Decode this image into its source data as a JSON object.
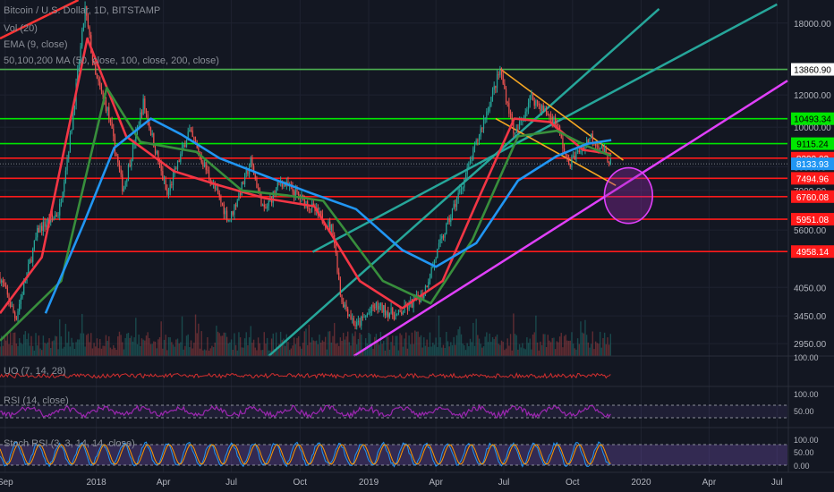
{
  "header": {
    "title": "Bitcoin / U.S. Dollar, 1D, BITSTAMP",
    "vol": "Vol (20)",
    "ema": "EMA (9, close)",
    "ma": "50,100,200 MA (50, close, 100, close, 200, close)"
  },
  "panels": {
    "uo": "UO (7, 14, 28)",
    "rsi": "RSI (14, close)",
    "stoch": "Stoch RSI (3, 3, 14, 14, close)"
  },
  "chart_data": {
    "type": "line",
    "title": "Bitcoin / U.S. Dollar, 1D, BITSTAMP",
    "xlabel": "",
    "ylabel": "",
    "x_ticks": [
      "Sep",
      "2018",
      "Apr",
      "Jul",
      "Oct",
      "2019",
      "Apr",
      "Jul",
      "Oct",
      "2020",
      "Apr",
      "Jul"
    ],
    "x_tick_dates": [
      "2017-09-01",
      "2018-01-01",
      "2018-04-01",
      "2018-07-01",
      "2018-10-01",
      "2019-01-01",
      "2019-04-01",
      "2019-07-01",
      "2019-10-01",
      "2020-01-01",
      "2020-04-01",
      "2020-07-01"
    ],
    "xlim": [
      "2017-08-25",
      "2020-07-15"
    ],
    "y_scale": "log",
    "ylim": [
      2750,
      20500
    ],
    "y_ticks": [
      18000,
      12000,
      10000,
      8000,
      7000,
      5600,
      4050,
      3450,
      2950
    ],
    "price_labels": [
      {
        "value": "13860.90",
        "color": "#ffffff",
        "text_color": "#000000"
      },
      {
        "value": "10493.34",
        "color": "#00e600",
        "text_color": "#000000"
      },
      {
        "value": "9115.24",
        "color": "#00e600",
        "text_color": "#000000"
      },
      {
        "value": "8399.02",
        "color": "#ff1a1a",
        "text_color": "#ffffff"
      },
      {
        "value": "8133.93",
        "color": "#2196f3",
        "text_color": "#ffffff"
      },
      {
        "value": "7494.96",
        "color": "#ff1a1a",
        "text_color": "#ffffff"
      },
      {
        "value": "6760.08",
        "color": "#ff1a1a",
        "text_color": "#ffffff"
      },
      {
        "value": "5951.08",
        "color": "#ff1a1a",
        "text_color": "#ffffff"
      },
      {
        "value": "4958.14",
        "color": "#ff1a1a",
        "text_color": "#ffffff"
      }
    ],
    "horizontal_levels": [
      {
        "value": 13860.9,
        "color": "#4caf50"
      },
      {
        "value": 10493.34,
        "color": "#00e600"
      },
      {
        "value": 9115.24,
        "color": "#00e600"
      },
      {
        "value": 8399.02,
        "color": "#ff1a1a"
      },
      {
        "value": 7494.96,
        "color": "#ff1a1a"
      },
      {
        "value": 6760.08,
        "color": "#ff1a1a"
      },
      {
        "value": 5951.08,
        "color": "#ff1a1a"
      },
      {
        "value": 4958.14,
        "color": "#ff1a1a"
      }
    ],
    "series": [
      {
        "type": "price",
        "x": [
          "2017-08-25",
          "2017-09-15",
          "2017-10-15",
          "2017-11-12",
          "2017-11-28",
          "2017-12-17",
          "2017-12-30",
          "2018-01-16",
          "2018-02-06",
          "2018-03-05",
          "2018-04-06",
          "2018-05-05",
          "2018-06-28",
          "2018-07-27",
          "2018-08-14",
          "2018-09-05",
          "2018-10-15",
          "2018-11-14",
          "2018-11-25",
          "2018-12-15",
          "2019-01-10",
          "2019-02-08",
          "2019-03-15",
          "2019-04-02",
          "2019-05-14",
          "2019-06-26",
          "2019-07-16",
          "2019-08-06",
          "2019-09-10",
          "2019-09-25",
          "2019-10-26",
          "2019-11-10",
          "2019-11-22"
        ],
        "y": [
          4300,
          3400,
          5600,
          6200,
          9700,
          19500,
          13500,
          11000,
          7000,
          11500,
          6800,
          9800,
          5900,
          8200,
          6200,
          7400,
          6400,
          5600,
          3800,
          3250,
          3650,
          3450,
          3900,
          4900,
          7900,
          13800,
          9500,
          11900,
          10200,
          8100,
          9500,
          8800,
          8133
        ]
      },
      {
        "name": "",
        "type": "ma",
        "color": "#f23645",
        "x": [
          "2017-08-25",
          "2017-10-20",
          "2017-12-20",
          "2018-02-10",
          "2018-04-15",
          "2018-06-15",
          "2018-08-15",
          "2018-10-20",
          "2018-12-20",
          "2019-02-15",
          "2019-04-10",
          "2019-05-25",
          "2019-07-15",
          "2019-09-01",
          "2019-10-15",
          "2019-11-22"
        ],
        "y": [
          3500,
          4800,
          16500,
          9500,
          7800,
          7200,
          6700,
          6400,
          4200,
          3600,
          4200,
          6500,
          10500,
          10300,
          8800,
          8600
        ]
      },
      {
        "name": "",
        "type": "ma",
        "color": "#388e3c",
        "x": [
          "2017-08-25",
          "2017-11-15",
          "2018-01-15",
          "2018-03-01",
          "2018-05-15",
          "2018-07-15",
          "2018-09-15",
          "2018-11-01",
          "2019-01-20",
          "2019-03-25",
          "2019-05-20",
          "2019-07-20",
          "2019-09-10",
          "2019-10-20",
          "2019-11-22"
        ],
        "y": [
          3000,
          4200,
          12500,
          9200,
          8700,
          7000,
          6800,
          6600,
          4200,
          3700,
          5300,
          9500,
          9800,
          9000,
          8500
        ]
      },
      {
        "name": "",
        "type": "ma",
        "color": "#2196f3",
        "x": [
          "2017-10-25",
          "2017-12-15",
          "2018-01-25",
          "2018-03-15",
          "2018-04-25",
          "2018-06-15",
          "2018-08-15",
          "2018-10-15",
          "2018-12-15",
          "2019-02-15",
          "2019-04-01",
          "2019-05-25",
          "2019-07-20",
          "2019-09-10",
          "2019-10-20",
          "2019-11-22"
        ],
        "y": [
          3500,
          5800,
          8900,
          10500,
          9600,
          8400,
          7600,
          6900,
          6300,
          5000,
          4550,
          5200,
          7400,
          8500,
          9100,
          9300
        ]
      }
    ],
    "annotations": {
      "channel_lines": [
        {
          "color": "#26a69a",
          "from": [
            "2018-08-20",
            2750
          ],
          "to": [
            "2020-01-25",
            19500
          ]
        },
        {
          "color": "#26a69a",
          "from": [
            "2018-10-18",
            4950
          ],
          "to": [
            "2020-07-01",
            20000
          ]
        },
        {
          "color": "#e040fb",
          "from": [
            "2018-12-12",
            2750
          ],
          "to": [
            "2020-07-15",
            13000
          ]
        },
        {
          "color": "#ff3333",
          "from": [
            "2017-08-25",
            16500
          ],
          "to": [
            "2017-12-08",
            20500
          ]
        }
      ],
      "wedge_lines": [
        {
          "color": "#f5a623",
          "from": [
            "2019-06-26",
            13900
          ],
          "to": [
            "2019-12-08",
            8300
          ]
        },
        {
          "color": "#f5a623",
          "from": [
            "2019-06-20",
            10500
          ],
          "to": [
            "2019-11-28",
            7200
          ]
        }
      ],
      "circle": {
        "center": [
          "2019-12-15",
          6800
        ],
        "radius_days": 28,
        "color": "#e040fb"
      }
    }
  }
}
